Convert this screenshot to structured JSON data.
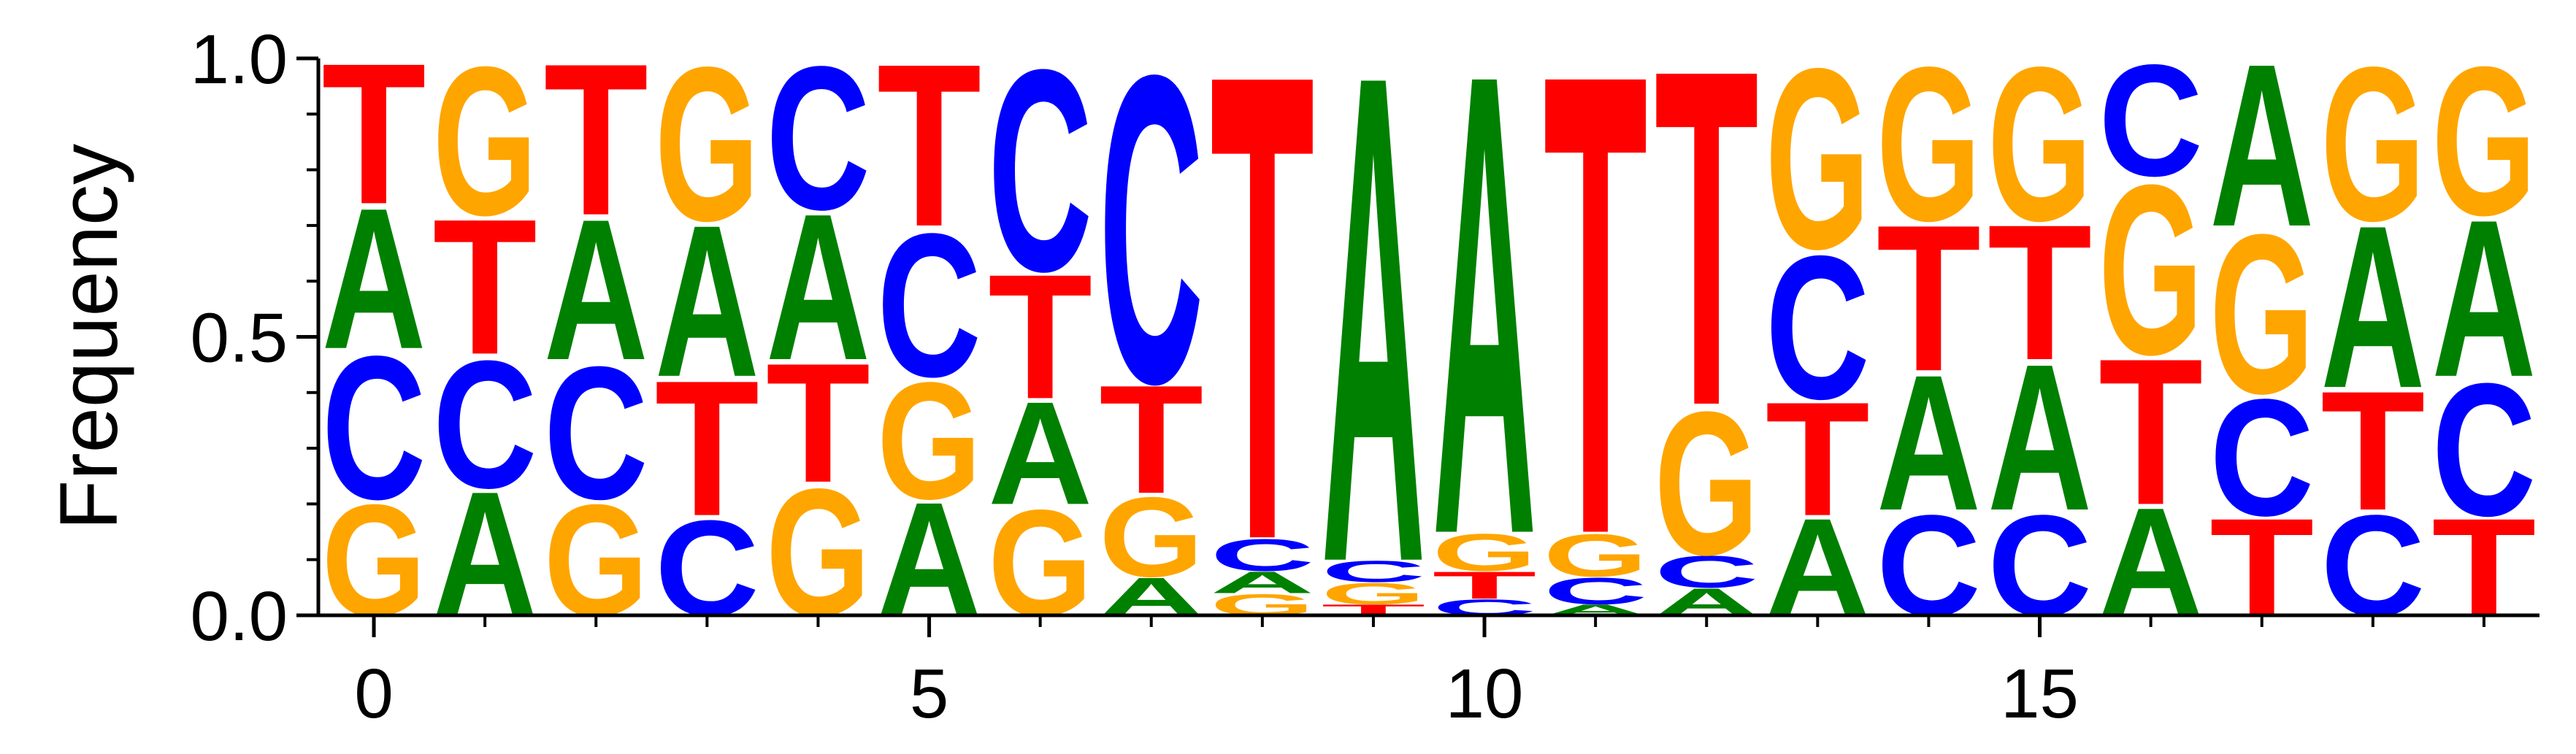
{
  "chart_data": {
    "type": "sequence-logo",
    "ylabel": "Frequency",
    "ylim": [
      0,
      1
    ],
    "y_ticks": [
      {
        "value": 0.0,
        "label": "0.0"
      },
      {
        "value": 0.5,
        "label": "0.5"
      },
      {
        "value": 1.0,
        "label": "1.0"
      }
    ],
    "xlim": [
      -0.5,
      19.5
    ],
    "x_ticks": [
      {
        "value": 0,
        "label": "0"
      },
      {
        "value": 5,
        "label": "5"
      },
      {
        "value": 10,
        "label": "10"
      },
      {
        "value": 15,
        "label": "15"
      }
    ],
    "colors": {
      "A": "#008000",
      "C": "#0000ff",
      "G": "#ffa500",
      "T": "#ff0000"
    },
    "positions": [
      {
        "pos": 0,
        "stack": [
          {
            "base": "G",
            "freq": 0.21
          },
          {
            "base": "C",
            "freq": 0.27
          },
          {
            "base": "A",
            "freq": 0.26
          },
          {
            "base": "T",
            "freq": 0.26
          }
        ]
      },
      {
        "pos": 1,
        "stack": [
          {
            "base": "A",
            "freq": 0.23
          },
          {
            "base": "C",
            "freq": 0.24
          },
          {
            "base": "T",
            "freq": 0.25
          },
          {
            "base": "G",
            "freq": 0.28
          }
        ]
      },
      {
        "pos": 2,
        "stack": [
          {
            "base": "G",
            "freq": 0.21
          },
          {
            "base": "C",
            "freq": 0.25
          },
          {
            "base": "A",
            "freq": 0.26
          },
          {
            "base": "T",
            "freq": 0.28
          }
        ]
      },
      {
        "pos": 3,
        "stack": [
          {
            "base": "C",
            "freq": 0.18
          },
          {
            "base": "T",
            "freq": 0.25
          },
          {
            "base": "A",
            "freq": 0.28
          },
          {
            "base": "G",
            "freq": 0.29
          }
        ]
      },
      {
        "pos": 4,
        "stack": [
          {
            "base": "G",
            "freq": 0.24
          },
          {
            "base": "T",
            "freq": 0.22
          },
          {
            "base": "A",
            "freq": 0.27
          },
          {
            "base": "C",
            "freq": 0.27
          }
        ]
      },
      {
        "pos": 5,
        "stack": [
          {
            "base": "A",
            "freq": 0.21
          },
          {
            "base": "G",
            "freq": 0.22
          },
          {
            "base": "C",
            "freq": 0.27
          },
          {
            "base": "T",
            "freq": 0.3
          }
        ]
      },
      {
        "pos": 6,
        "stack": [
          {
            "base": "G",
            "freq": 0.2
          },
          {
            "base": "A",
            "freq": 0.19
          },
          {
            "base": "T",
            "freq": 0.23
          },
          {
            "base": "C",
            "freq": 0.38
          }
        ]
      },
      {
        "pos": 7,
        "stack": [
          {
            "base": "A",
            "freq": 0.07
          },
          {
            "base": "G",
            "freq": 0.15
          },
          {
            "base": "T",
            "freq": 0.2
          },
          {
            "base": "C",
            "freq": 0.58
          }
        ]
      },
      {
        "pos": 8,
        "stack": [
          {
            "base": "G",
            "freq": 0.04
          },
          {
            "base": "A",
            "freq": 0.04
          },
          {
            "base": "C",
            "freq": 0.06
          },
          {
            "base": "T",
            "freq": 0.86
          }
        ]
      },
      {
        "pos": 9,
        "stack": [
          {
            "base": "T",
            "freq": 0.02
          },
          {
            "base": "G",
            "freq": 0.04
          },
          {
            "base": "C",
            "freq": 0.04
          },
          {
            "base": "A",
            "freq": 0.9
          }
        ]
      },
      {
        "pos": 10,
        "stack": [
          {
            "base": "C",
            "freq": 0.03
          },
          {
            "base": "T",
            "freq": 0.05
          },
          {
            "base": "G",
            "freq": 0.07
          },
          {
            "base": "A",
            "freq": 0.85
          }
        ]
      },
      {
        "pos": 11,
        "stack": [
          {
            "base": "A",
            "freq": 0.02
          },
          {
            "base": "C",
            "freq": 0.05
          },
          {
            "base": "G",
            "freq": 0.08
          },
          {
            "base": "T",
            "freq": 0.85
          }
        ]
      },
      {
        "pos": 12,
        "stack": [
          {
            "base": "A",
            "freq": 0.05
          },
          {
            "base": "C",
            "freq": 0.06
          },
          {
            "base": "G",
            "freq": 0.27
          },
          {
            "base": "T",
            "freq": 0.62
          }
        ]
      },
      {
        "pos": 13,
        "stack": [
          {
            "base": "A",
            "freq": 0.18
          },
          {
            "base": "T",
            "freq": 0.21
          },
          {
            "base": "C",
            "freq": 0.27
          },
          {
            "base": "G",
            "freq": 0.34
          }
        ]
      },
      {
        "pos": 14,
        "stack": [
          {
            "base": "C",
            "freq": 0.19
          },
          {
            "base": "A",
            "freq": 0.25
          },
          {
            "base": "T",
            "freq": 0.27
          },
          {
            "base": "G",
            "freq": 0.29
          }
        ]
      },
      {
        "pos": 15,
        "stack": [
          {
            "base": "C",
            "freq": 0.19
          },
          {
            "base": "A",
            "freq": 0.27
          },
          {
            "base": "T",
            "freq": 0.25
          },
          {
            "base": "G",
            "freq": 0.29
          }
        ]
      },
      {
        "pos": 16,
        "stack": [
          {
            "base": "A",
            "freq": 0.2
          },
          {
            "base": "T",
            "freq": 0.27
          },
          {
            "base": "G",
            "freq": 0.32
          },
          {
            "base": "C",
            "freq": 0.21
          }
        ]
      },
      {
        "pos": 17,
        "stack": [
          {
            "base": "T",
            "freq": 0.18
          },
          {
            "base": "C",
            "freq": 0.22
          },
          {
            "base": "G",
            "freq": 0.3
          },
          {
            "base": "A",
            "freq": 0.3
          }
        ]
      },
      {
        "pos": 18,
        "stack": [
          {
            "base": "C",
            "freq": 0.19
          },
          {
            "base": "T",
            "freq": 0.22
          },
          {
            "base": "A",
            "freq": 0.3
          },
          {
            "base": "G",
            "freq": 0.29
          }
        ]
      },
      {
        "pos": 19,
        "stack": [
          {
            "base": "T",
            "freq": 0.18
          },
          {
            "base": "C",
            "freq": 0.25
          },
          {
            "base": "A",
            "freq": 0.29
          },
          {
            "base": "G",
            "freq": 0.28
          }
        ]
      }
    ]
  }
}
